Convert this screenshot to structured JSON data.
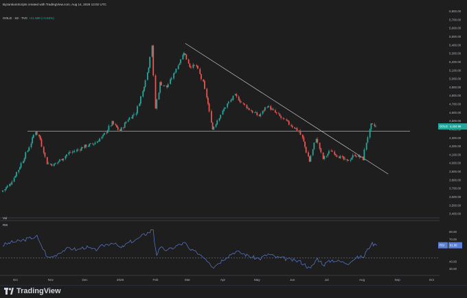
{
  "header": {
    "author_line": "ByzantiumScripts created with TradingView.com, Aug 14, 2026 13:02 UTC",
    "symbol": "GOLD",
    "interval": "1D",
    "source": "TVC",
    "change": "+21.598 (+0.50%)"
  },
  "price_pane": {
    "last_price_label": "4,434.96",
    "symbol_tag": "GOLD"
  },
  "vol_label": "Vol",
  "rsi_label": "RSI",
  "rsi_tag_label": "RSI",
  "rsi_tag_value": "61.95",
  "brand": "TradingView",
  "colors": {
    "up": "#26a69a",
    "down": "#ef5350",
    "bg": "#1e1e1e",
    "rsi_line": "#5b7fd6",
    "grid": "#2a2e39"
  },
  "chart_data": [
    {
      "type": "candlestick",
      "title": "GOLD · 1D · TVC",
      "x_tick_labels": [
        "Oct",
        "Nov",
        "Dec",
        "2026",
        "Feb",
        "Mar",
        "Apr",
        "May",
        "Jun",
        "Jul",
        "Aug",
        "Sep",
        "Oct"
      ],
      "y_tick_labels": [
        "3,400.00",
        "3,500.00",
        "3,600.00",
        "3,700.00",
        "3,800.00",
        "3,900.00",
        "4,000.00",
        "4,100.00",
        "4,200.00",
        "4,300.00",
        "4,400.00",
        "4,500.00",
        "4,600.00",
        "4,700.00",
        "4,800.00",
        "4,900.00",
        "5,000.00",
        "5,100.00",
        "5,200.00",
        "5,300.00",
        "5,400.00",
        "5,500.00",
        "5,600.00",
        "5,700.00",
        "5,800.00"
      ],
      "ylim": [
        3400,
        5820
      ],
      "close_series": [
        {
          "date": "2025-09-20",
          "close": 3660
        },
        {
          "date": "2025-09-28",
          "close": 3760
        },
        {
          "date": "2025-10-06",
          "close": 3960
        },
        {
          "date": "2025-10-13",
          "close": 4150
        },
        {
          "date": "2025-10-20",
          "close": 4380
        },
        {
          "date": "2025-10-24",
          "close": 4280
        },
        {
          "date": "2025-10-30",
          "close": 4000
        },
        {
          "date": "2025-11-05",
          "close": 3980
        },
        {
          "date": "2025-11-12",
          "close": 4050
        },
        {
          "date": "2025-11-18",
          "close": 4120
        },
        {
          "date": "2025-11-25",
          "close": 4150
        },
        {
          "date": "2025-12-02",
          "close": 4200
        },
        {
          "date": "2025-12-10",
          "close": 4230
        },
        {
          "date": "2025-12-18",
          "close": 4320
        },
        {
          "date": "2025-12-26",
          "close": 4480
        },
        {
          "date": "2026-01-02",
          "close": 4380
        },
        {
          "date": "2026-01-09",
          "close": 4520
        },
        {
          "date": "2026-01-16",
          "close": 4600
        },
        {
          "date": "2026-01-22",
          "close": 4850
        },
        {
          "date": "2026-01-27",
          "close": 5150
        },
        {
          "date": "2026-01-30",
          "close": 5400
        },
        {
          "date": "2026-02-02",
          "close": 4650
        },
        {
          "date": "2026-02-06",
          "close": 4950
        },
        {
          "date": "2026-02-12",
          "close": 4900
        },
        {
          "date": "2026-02-18",
          "close": 5050
        },
        {
          "date": "2026-02-23",
          "close": 5200
        },
        {
          "date": "2026-02-27",
          "close": 5320
        },
        {
          "date": "2026-03-04",
          "close": 5150
        },
        {
          "date": "2026-03-10",
          "close": 5150
        },
        {
          "date": "2026-03-16",
          "close": 4950
        },
        {
          "date": "2026-03-20",
          "close": 4700
        },
        {
          "date": "2026-03-24",
          "close": 4400
        },
        {
          "date": "2026-03-30",
          "close": 4550
        },
        {
          "date": "2026-04-06",
          "close": 4700
        },
        {
          "date": "2026-04-13",
          "close": 4800
        },
        {
          "date": "2026-04-20",
          "close": 4700
        },
        {
          "date": "2026-04-27",
          "close": 4620
        },
        {
          "date": "2026-05-04",
          "close": 4560
        },
        {
          "date": "2026-05-11",
          "close": 4680
        },
        {
          "date": "2026-05-18",
          "close": 4600
        },
        {
          "date": "2026-05-25",
          "close": 4520
        },
        {
          "date": "2026-06-01",
          "close": 4450
        },
        {
          "date": "2026-06-08",
          "close": 4380
        },
        {
          "date": "2026-06-12",
          "close": 4250
        },
        {
          "date": "2026-06-17",
          "close": 4020
        },
        {
          "date": "2026-06-23",
          "close": 4300
        },
        {
          "date": "2026-06-29",
          "close": 4050
        },
        {
          "date": "2026-07-06",
          "close": 4150
        },
        {
          "date": "2026-07-13",
          "close": 4080
        },
        {
          "date": "2026-07-20",
          "close": 4020
        },
        {
          "date": "2026-07-27",
          "close": 4100
        },
        {
          "date": "2026-08-03",
          "close": 4050
        },
        {
          "date": "2026-08-06",
          "close": 4250
        },
        {
          "date": "2026-08-10",
          "close": 4450
        },
        {
          "date": "2026-08-14",
          "close": 4435
        }
      ],
      "horizontal_level": 4380,
      "trendline": [
        {
          "date": "2026-02-27",
          "price": 5420
        },
        {
          "date": "2026-08-24",
          "price": 3870
        }
      ]
    },
    {
      "type": "line",
      "title": "RSI",
      "y_tick_labels": [
        "30.00",
        "40.00",
        "70.00",
        "80.00"
      ],
      "ylim": [
        25,
        88
      ],
      "series": [
        {
          "name": "RSI",
          "points": [
            {
              "date": "2025-09-20",
              "value": 62
            },
            {
              "date": "2025-09-28",
              "value": 66
            },
            {
              "date": "2025-10-06",
              "value": 68
            },
            {
              "date": "2025-10-13",
              "value": 71
            },
            {
              "date": "2025-10-20",
              "value": 74
            },
            {
              "date": "2025-10-24",
              "value": 62
            },
            {
              "date": "2025-10-30",
              "value": 45
            },
            {
              "date": "2025-11-05",
              "value": 48
            },
            {
              "date": "2025-11-12",
              "value": 55
            },
            {
              "date": "2025-11-18",
              "value": 58
            },
            {
              "date": "2025-11-25",
              "value": 56
            },
            {
              "date": "2025-12-02",
              "value": 60
            },
            {
              "date": "2025-12-10",
              "value": 55
            },
            {
              "date": "2025-12-18",
              "value": 62
            },
            {
              "date": "2025-12-26",
              "value": 66
            },
            {
              "date": "2026-01-02",
              "value": 58
            },
            {
              "date": "2026-01-09",
              "value": 66
            },
            {
              "date": "2026-01-16",
              "value": 70
            },
            {
              "date": "2026-01-22",
              "value": 76
            },
            {
              "date": "2026-01-27",
              "value": 80
            },
            {
              "date": "2026-01-30",
              "value": 84
            },
            {
              "date": "2026-02-02",
              "value": 50
            },
            {
              "date": "2026-02-06",
              "value": 58
            },
            {
              "date": "2026-02-12",
              "value": 55
            },
            {
              "date": "2026-02-18",
              "value": 60
            },
            {
              "date": "2026-02-23",
              "value": 63
            },
            {
              "date": "2026-02-27",
              "value": 65
            },
            {
              "date": "2026-03-04",
              "value": 55
            },
            {
              "date": "2026-03-10",
              "value": 52
            },
            {
              "date": "2026-03-16",
              "value": 46
            },
            {
              "date": "2026-03-20",
              "value": 40
            },
            {
              "date": "2026-03-24",
              "value": 33
            },
            {
              "date": "2026-03-30",
              "value": 40
            },
            {
              "date": "2026-04-06",
              "value": 48
            },
            {
              "date": "2026-04-13",
              "value": 54
            },
            {
              "date": "2026-04-20",
              "value": 50
            },
            {
              "date": "2026-04-27",
              "value": 46
            },
            {
              "date": "2026-05-04",
              "value": 44
            },
            {
              "date": "2026-05-11",
              "value": 50
            },
            {
              "date": "2026-05-18",
              "value": 46
            },
            {
              "date": "2026-05-25",
              "value": 44
            },
            {
              "date": "2026-06-01",
              "value": 42
            },
            {
              "date": "2026-06-08",
              "value": 40
            },
            {
              "date": "2026-06-12",
              "value": 36
            },
            {
              "date": "2026-06-17",
              "value": 30
            },
            {
              "date": "2026-06-23",
              "value": 44
            },
            {
              "date": "2026-06-29",
              "value": 36
            },
            {
              "date": "2026-07-06",
              "value": 42
            },
            {
              "date": "2026-07-13",
              "value": 40
            },
            {
              "date": "2026-07-20",
              "value": 38
            },
            {
              "date": "2026-07-27",
              "value": 45
            },
            {
              "date": "2026-08-03",
              "value": 47
            },
            {
              "date": "2026-08-06",
              "value": 56
            },
            {
              "date": "2026-08-10",
              "value": 64
            },
            {
              "date": "2026-08-14",
              "value": 62
            }
          ]
        }
      ],
      "reference_level": 45
    }
  ]
}
